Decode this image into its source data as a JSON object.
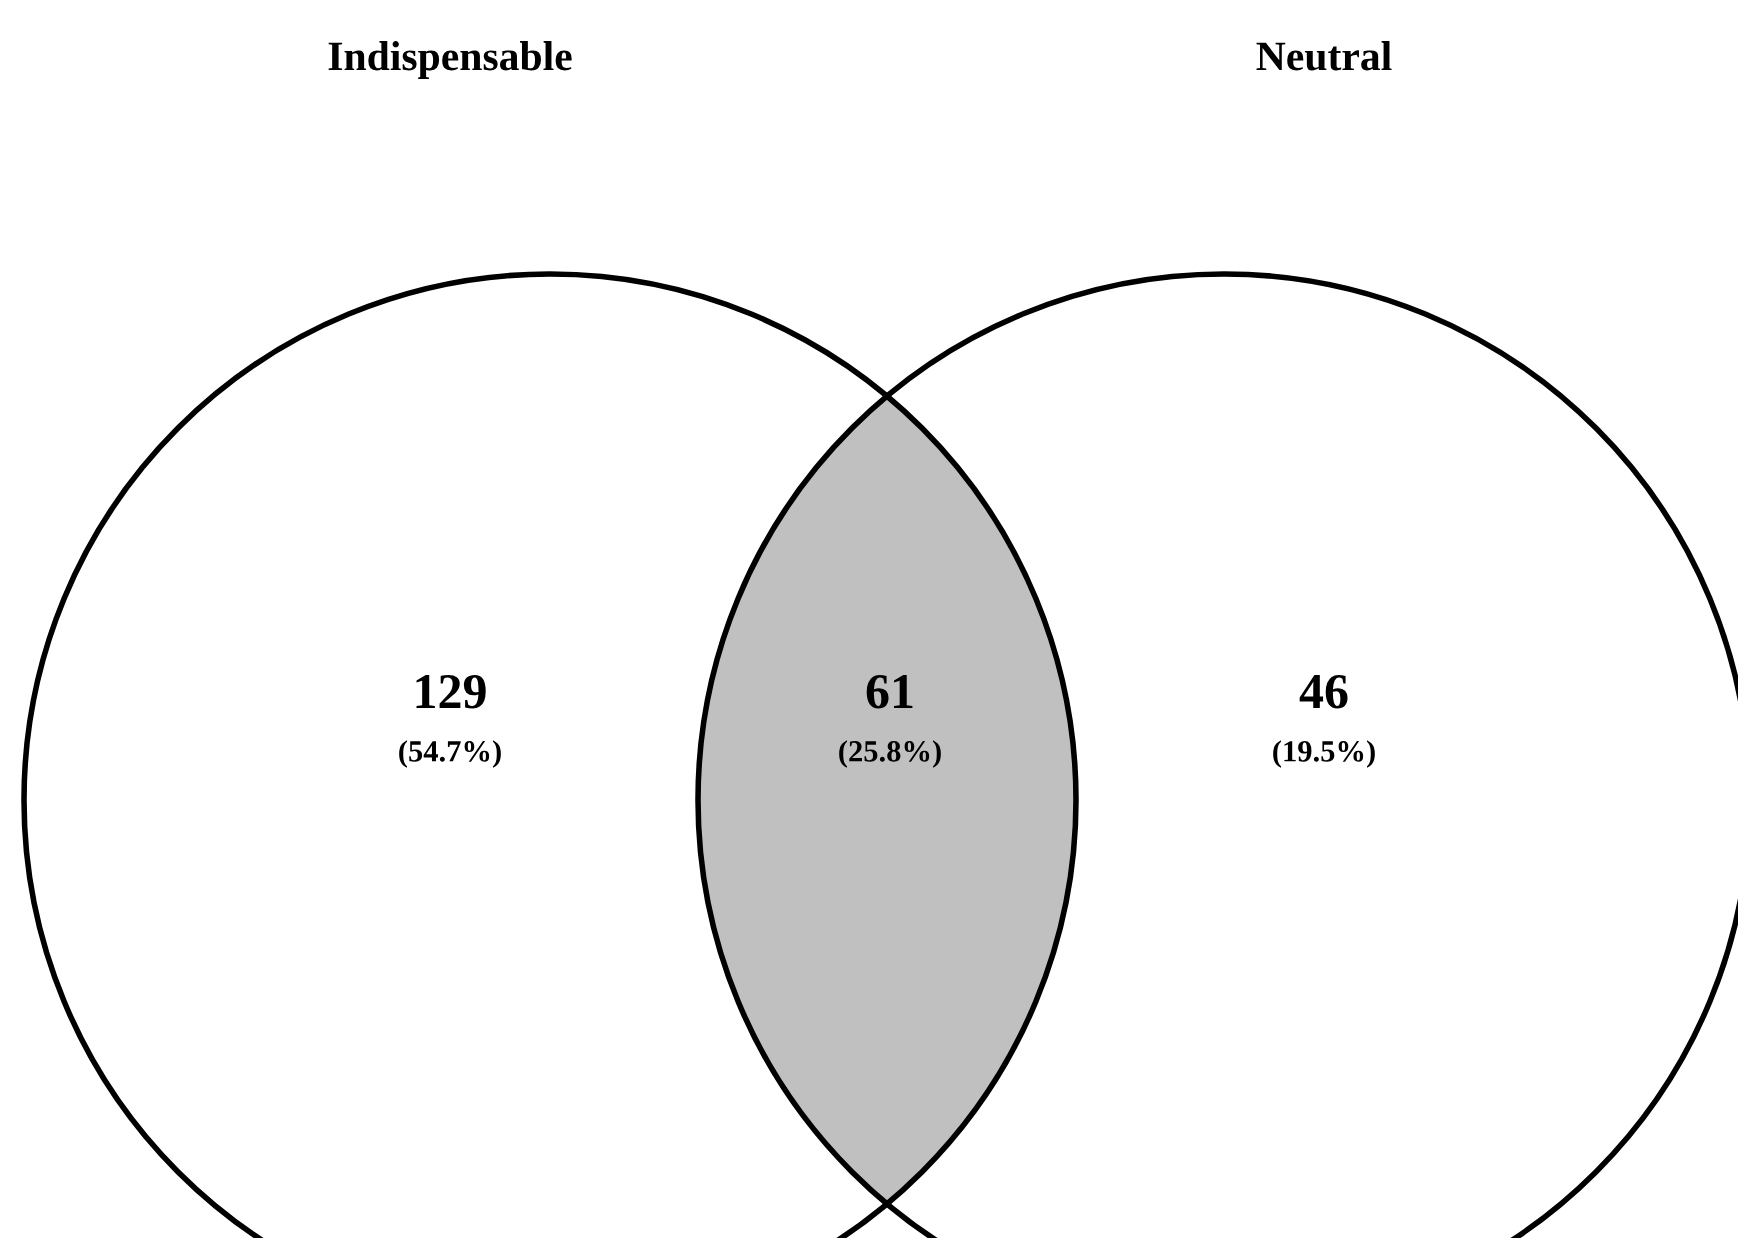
{
  "chart_data": {
    "type": "other",
    "categories": [
      "Indispensable",
      null,
      "Neutral"
    ],
    "values": [
      129,
      61,
      46
    ],
    "annotations": [
      "(54.7%)",
      "(25.8%)",
      "(19.5%)"
    ],
    "colors": [
      "#ffffff",
      "#c0c0c0",
      "#ffffff"
    ],
    "data_labels": true
  }
}
